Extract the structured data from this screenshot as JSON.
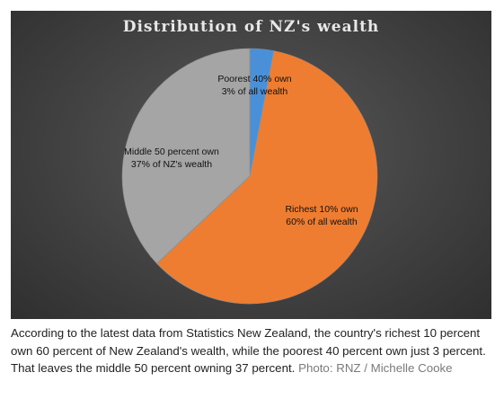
{
  "chart_data": {
    "type": "pie",
    "title": "Distribution of NZ's wealth",
    "slices": [
      {
        "label": "Poorest 40% own 3% of all wealth",
        "value": 3,
        "color": "#4a90d9"
      },
      {
        "label": "Richest 10% own 60% of all wealth",
        "value": 60,
        "color": "#ee7d31"
      },
      {
        "label": "Middle 50 percent own 37% of NZ's wealth",
        "value": 37,
        "color": "#a5a5a5"
      }
    ],
    "start": "12 o'clock",
    "direction": "clockwise"
  },
  "caption": {
    "text": "According to the latest data from Statistics New Zealand, the country's richest 10 percent own 60 percent of New Zealand's wealth, while the poorest 40 percent own just 3 percent. That leaves the middle 50 percent owning 37 percent.",
    "credit": "Photo: RNZ / Michelle Cooke"
  },
  "colors": {
    "panel_background": "#3d3d3d",
    "title_text": "#e8e8e8",
    "credit_text": "#7a7a7a"
  }
}
